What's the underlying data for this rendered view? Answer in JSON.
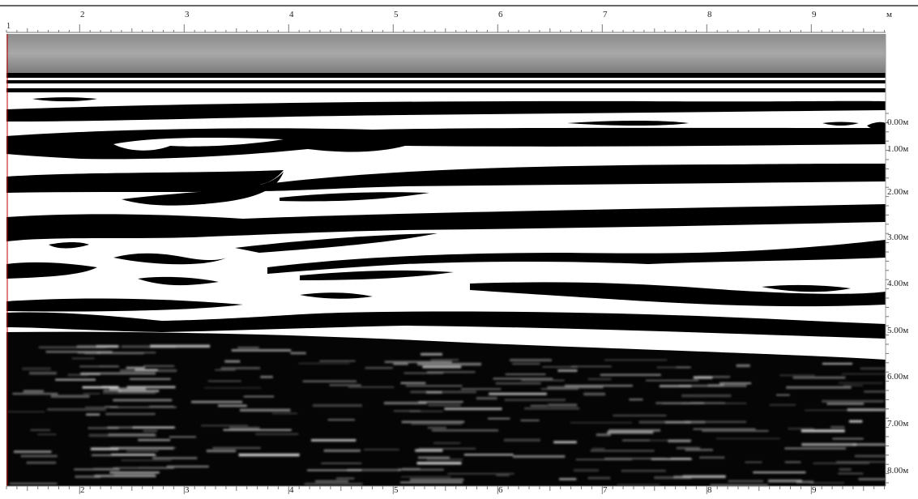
{
  "top_axis": {
    "unit": "м",
    "start_label": "1",
    "labels": [
      "2",
      "3",
      "4",
      "5",
      "6",
      "7",
      "8",
      "9"
    ]
  },
  "bottom_axis": {
    "labels": [
      "2",
      "3",
      "4",
      "5",
      "6",
      "7",
      "8",
      "9"
    ]
  },
  "depth_axis": {
    "labels": [
      "0.00м",
      "1.00м",
      "2.00м",
      "3.00м",
      "4.00м",
      "5.00м",
      "6.00м",
      "7.00м",
      "8.00м"
    ]
  },
  "colors": {
    "background": "#ffffff",
    "reflector": "#000000",
    "cursor_line": "#c00000",
    "air_band": "#9a9a9a"
  }
}
